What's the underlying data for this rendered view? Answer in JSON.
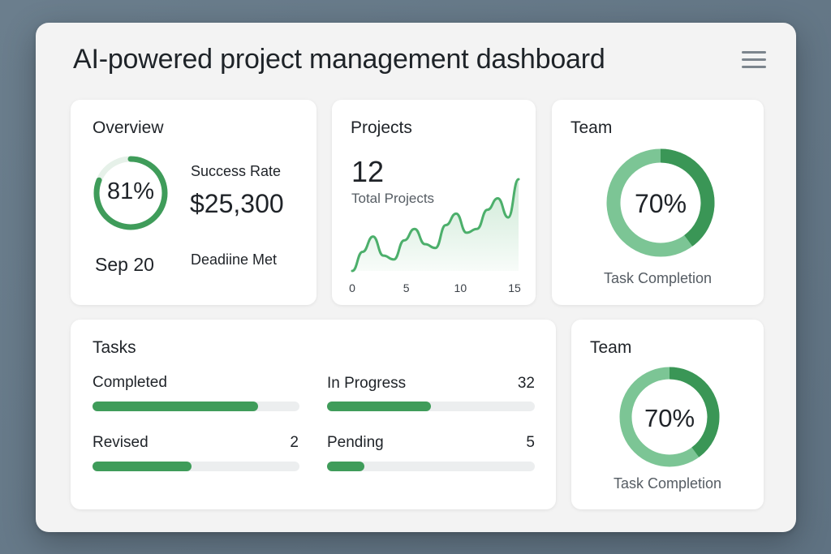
{
  "header": {
    "title": "AI-powered project management dashboard",
    "menu_icon": "hamburger-menu-icon"
  },
  "overview": {
    "title": "Overview",
    "success_pct": 81,
    "success_text": "81%",
    "success_label": "Success Rate",
    "amount": "$25,300",
    "date": "Sep 20",
    "deadline_label": "Deadiine Met"
  },
  "projects": {
    "title": "Projects",
    "count": "12",
    "count_label": "Total Projects",
    "chart_data": {
      "type": "area",
      "x": [
        0,
        1,
        2,
        3,
        4,
        5,
        6,
        7,
        8,
        9,
        10,
        11,
        12,
        13,
        14,
        15,
        16
      ],
      "y": [
        0,
        2.5,
        4.5,
        2,
        1.5,
        4,
        5.5,
        3.5,
        3,
        6,
        7.5,
        5,
        5.5,
        8,
        9.5,
        7,
        12
      ],
      "xticks": [
        "0",
        "5",
        "10",
        "15"
      ],
      "xtick_values": [
        0,
        5,
        10,
        15
      ],
      "color": "#4caf6b"
    }
  },
  "team1": {
    "title": "Team",
    "pct": 70,
    "pct_text": "70%",
    "label": "Task Completion"
  },
  "team2": {
    "title": "Team",
    "pct": 70,
    "pct_text": "70%",
    "label": "Task Completion"
  },
  "tasks": {
    "title": "Tasks",
    "items": [
      {
        "label": "Completed",
        "count": "",
        "fill": 0.8
      },
      {
        "label": "In Progress",
        "count": "32",
        "fill": 0.5
      },
      {
        "label": "Revised",
        "count": "2",
        "fill": 0.48
      },
      {
        "label": "Pending",
        "count": "5",
        "fill": 0.18
      }
    ]
  },
  "colors": {
    "accent": "#3f9c5a",
    "accent_light": "#7cc595",
    "track": "#eceeef"
  }
}
